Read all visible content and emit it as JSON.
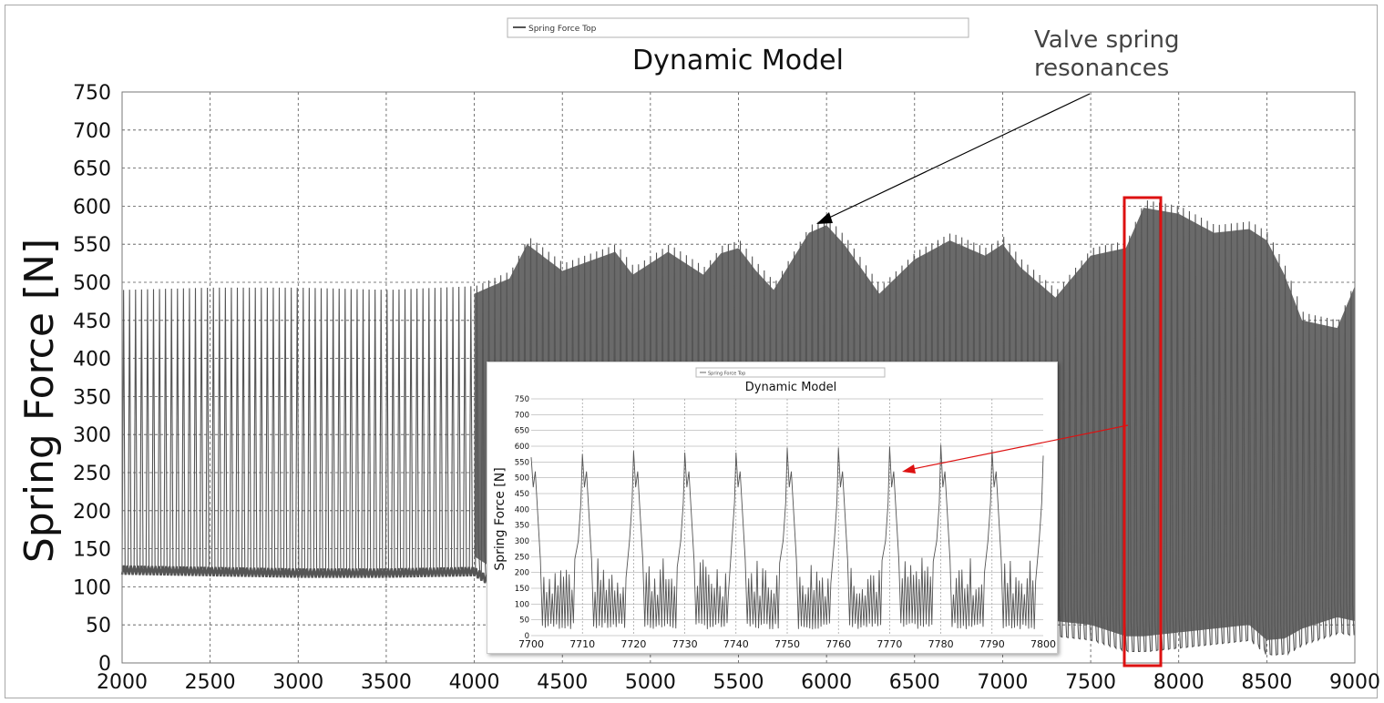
{
  "main_chart": {
    "title": "Dynamic Model",
    "ylabel": "Spring Force [N]",
    "legend": "Spring Force Top",
    "annotation": "Valve spring resonances",
    "annotation_lines": [
      "Valve spring",
      "resonances"
    ],
    "xticks": [
      "2000",
      "2500",
      "3000",
      "3500",
      "4000",
      "4500",
      "5000",
      "5500",
      "6000",
      "6500",
      "7000",
      "7500",
      "8000",
      "8500",
      "9000"
    ],
    "yticks": [
      "0",
      "50",
      "100",
      "150",
      "200",
      "250",
      "300",
      "350",
      "400",
      "450",
      "500",
      "550",
      "600",
      "650",
      "700",
      "750"
    ]
  },
  "inset_chart": {
    "title": "Dynamic Model",
    "ylabel": "Spring Force [N]",
    "legend": "Spring Force Top",
    "xticks": [
      "7700",
      "7710",
      "7720",
      "7730",
      "7740",
      "7750",
      "7760",
      "7770",
      "7780",
      "7790",
      "7800"
    ],
    "yticks": [
      "0",
      "50",
      "100",
      "150",
      "200",
      "250",
      "300",
      "350",
      "400",
      "450",
      "500",
      "550",
      "600",
      "650",
      "700",
      "750"
    ]
  },
  "colors": {
    "series": "#555555",
    "grid": "#555555",
    "highlight": "#dd1111",
    "annotation_arrow": "#000000",
    "inset_arrow": "#dd1111"
  },
  "chart_data": [
    {
      "type": "line",
      "title": "Dynamic Model",
      "xlabel": "",
      "ylabel": "Spring Force [N]",
      "xlim": [
        2000,
        9000
      ],
      "ylim": [
        0,
        750
      ],
      "grid": true,
      "legend_position": "top",
      "series": [
        {
          "name": "Spring Force Top",
          "x": [
            2000,
            2500,
            3000,
            3500,
            4000,
            4200,
            4300,
            4500,
            4800,
            4900,
            5100,
            5300,
            5400,
            5500,
            5600,
            5700,
            5900,
            6000,
            6100,
            6300,
            6500,
            6700,
            6900,
            7000,
            7100,
            7300,
            7500,
            7700,
            7800,
            8000,
            8200,
            8400,
            8500,
            8600,
            8700,
            8900,
            9000
          ],
          "upper": [
            490,
            493,
            493,
            490,
            495,
            515,
            560,
            525,
            550,
            520,
            550,
            520,
            548,
            555,
            525,
            500,
            575,
            585,
            560,
            495,
            540,
            565,
            545,
            560,
            530,
            490,
            545,
            555,
            608,
            600,
            575,
            580,
            565,
            520,
            460,
            450,
            505
          ],
          "lower": [
            122,
            120,
            118,
            118,
            120,
            90,
            75,
            70,
            70,
            65,
            60,
            55,
            55,
            45,
            40,
            40,
            35,
            35,
            35,
            40,
            40,
            45,
            40,
            35,
            35,
            35,
            30,
            15,
            15,
            20,
            25,
            30,
            10,
            12,
            25,
            40,
            35
          ]
        }
      ],
      "annotations": [
        "Valve spring resonances"
      ]
    },
    {
      "type": "line",
      "title": "Dynamic Model",
      "xlabel": "",
      "ylabel": "Spring Force [N]",
      "xlim": [
        7700,
        7800
      ],
      "ylim": [
        0,
        750
      ],
      "grid": true,
      "legend_position": "top",
      "series": [
        {
          "name": "Spring Force Top",
          "cycle_peaks": [
            565,
            575,
            585,
            580,
            580,
            595,
            595,
            598,
            605,
            590,
            570
          ],
          "cycle_period": 10,
          "baseline_min": 20,
          "baseline_max": 250
        }
      ]
    }
  ]
}
